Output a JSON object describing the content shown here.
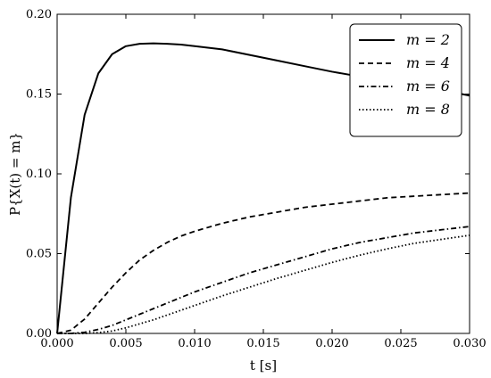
{
  "chart_data": {
    "type": "line",
    "xlabel": "t [s]",
    "ylabel": "P{X(t) = m}",
    "xlim": [
      0.0,
      0.03
    ],
    "ylim": [
      0.0,
      0.2
    ],
    "xticks": [
      "0.000",
      "0.005",
      "0.010",
      "0.015",
      "0.020",
      "0.025",
      "0.030"
    ],
    "yticks": [
      "0.00",
      "0.05",
      "0.10",
      "0.15",
      "0.20"
    ],
    "grid": false,
    "legend_position": "top-right",
    "x": [
      0,
      0.001,
      0.002,
      0.003,
      0.004,
      0.005,
      0.006,
      0.007,
      0.008,
      0.009,
      0.01,
      0.012,
      0.014,
      0.016,
      0.018,
      0.02,
      0.022,
      0.024,
      0.026,
      0.028,
      0.03
    ],
    "series": [
      {
        "name": "m = 2",
        "dash": "solid",
        "values": [
          0.0,
          0.085,
          0.137,
          0.163,
          0.175,
          0.18,
          0.1815,
          0.1818,
          0.1815,
          0.181,
          0.18,
          0.178,
          0.1745,
          0.171,
          0.1675,
          0.164,
          0.161,
          0.158,
          0.155,
          0.1525,
          0.149
        ]
      },
      {
        "name": "m = 4",
        "dash": "dashed",
        "values": [
          0.0,
          0.002,
          0.009,
          0.019,
          0.029,
          0.038,
          0.046,
          0.052,
          0.057,
          0.061,
          0.064,
          0.069,
          0.073,
          0.076,
          0.079,
          0.081,
          0.083,
          0.085,
          0.086,
          0.087,
          0.088
        ]
      },
      {
        "name": "m = 6",
        "dash": "dashdot",
        "values": [
          0.0,
          0.0,
          0.0007,
          0.0025,
          0.005,
          0.0085,
          0.012,
          0.0155,
          0.019,
          0.0225,
          0.026,
          0.032,
          0.038,
          0.043,
          0.048,
          0.053,
          0.057,
          0.06,
          0.063,
          0.065,
          0.067
        ]
      },
      {
        "name": "m = 8",
        "dash": "dotted",
        "values": [
          0.0,
          0.0,
          0.0,
          0.0005,
          0.0015,
          0.0035,
          0.006,
          0.0085,
          0.0115,
          0.0145,
          0.0175,
          0.0235,
          0.029,
          0.0345,
          0.0395,
          0.0445,
          0.049,
          0.053,
          0.0565,
          0.059,
          0.0615
        ]
      }
    ]
  }
}
